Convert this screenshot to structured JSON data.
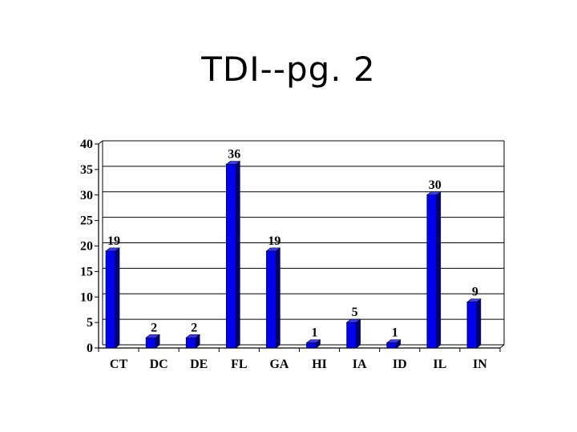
{
  "slide": {
    "title": "TDI--pg. 2"
  },
  "colors": {
    "bar_front": "#0000ee",
    "bar_side": "#00007a",
    "bar_top": "#3a3aff",
    "grid": "#000000",
    "axis": "#000000",
    "background": "#ffffff"
  },
  "chart_data": {
    "type": "bar",
    "title": "",
    "xlabel": "",
    "ylabel": "",
    "categories": [
      "CT",
      "DC",
      "DE",
      "FL",
      "GA",
      "HI",
      "IA",
      "ID",
      "IL",
      "IN"
    ],
    "values": [
      19,
      2,
      2,
      36,
      19,
      1,
      5,
      1,
      30,
      9
    ],
    "data_labels": [
      "19",
      "2",
      "2",
      "36",
      "19",
      "1",
      "5",
      "1",
      "30",
      "9"
    ],
    "ylim": [
      0,
      40
    ],
    "yticks": [
      0,
      5,
      10,
      15,
      20,
      25,
      30,
      35,
      40
    ],
    "grid": true,
    "legend": false,
    "style": "3d-column"
  }
}
